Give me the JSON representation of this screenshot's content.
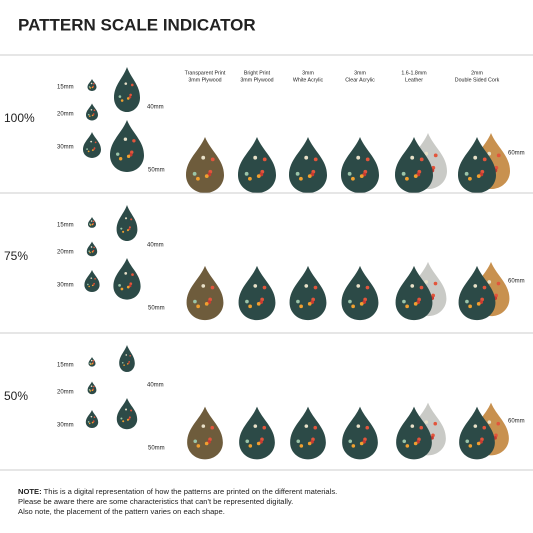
{
  "title": "PATTERN SCALE INDICATOR",
  "materials": [
    [
      "Transparent Print",
      "3mm Plywood"
    ],
    [
      "Bright Print",
      "3mm Plywood"
    ],
    [
      "3mm",
      "White Acrylic"
    ],
    [
      "3mm",
      "Clear Acrylic"
    ],
    [
      "1.6-1.8mm",
      "Leather"
    ],
    [
      "2mm",
      "Double Sided Cork"
    ]
  ],
  "sections": [
    {
      "scale": "100%",
      "sizes": [
        "15mm",
        "20mm",
        "30mm",
        "40mm",
        "50mm"
      ],
      "max_size": "60mm"
    },
    {
      "scale": "75%",
      "sizes": [
        "15mm",
        "20mm",
        "30mm",
        "40mm",
        "50mm"
      ],
      "max_size": "60mm"
    },
    {
      "scale": "50%",
      "sizes": [
        "15mm",
        "20mm",
        "30mm",
        "40mm",
        "50mm"
      ],
      "max_size": "60mm"
    }
  ],
  "note": {
    "label": "NOTE:",
    "lines": [
      " This is a digital representation of how the patterns are printed on the different materials.",
      "Please be aware there are some characteristics that can't be represented digitally.",
      "Also note, the placement of the pattern varies on each shape."
    ]
  }
}
